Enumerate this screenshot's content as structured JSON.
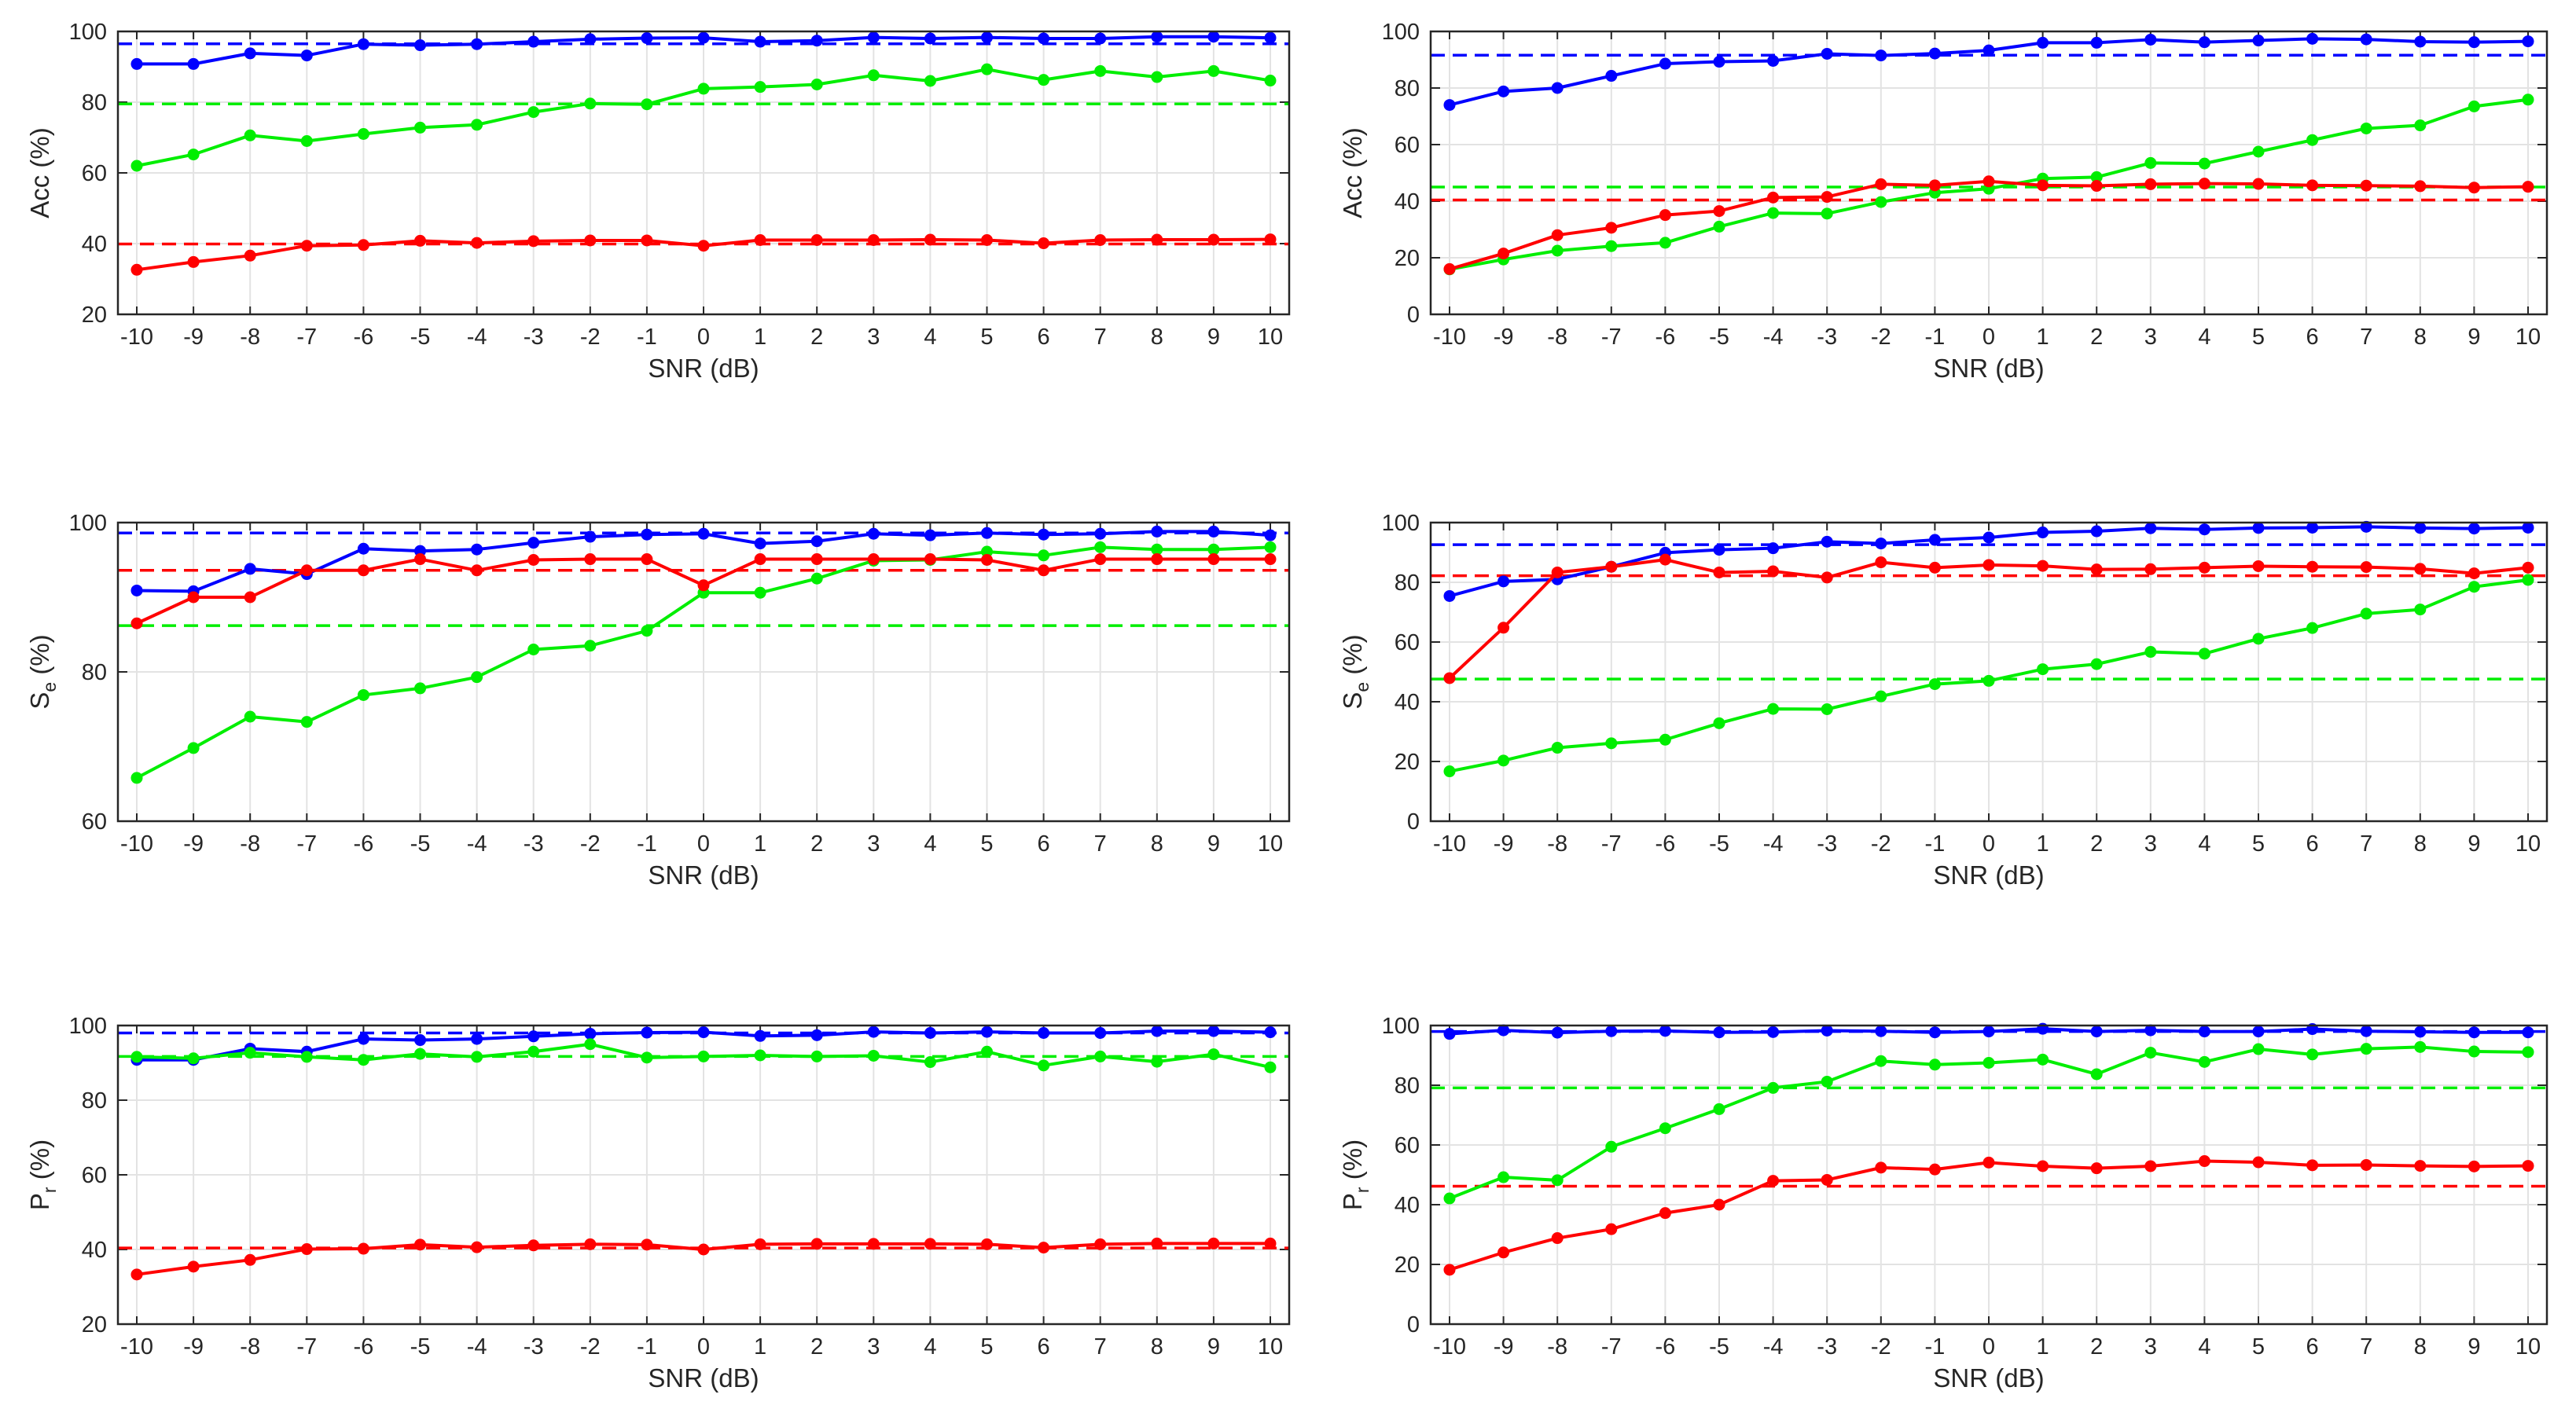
{
  "figure_type": "grid of 6 line charts (3 rows x 2 columns)",
  "colors": {
    "blue": "#0000ff",
    "green": "#00ee00",
    "red": "#ff0000",
    "grid": "#e3e3e3",
    "axis": "#262626"
  },
  "chart_data": [
    {
      "id": "row1-left",
      "type": "line",
      "xlabel": "SNR (dB)",
      "ylabel_main": "Acc",
      "ylabel_sub": "",
      "ylabel_unit": " (%)",
      "xticks": [
        "-10",
        "-9",
        "-8",
        "-7",
        "-6",
        "-5",
        "-4",
        "-3",
        "-2",
        "-1",
        "0",
        "1",
        "2",
        "3",
        "4",
        "5",
        "6",
        "7",
        "8",
        "9",
        "10"
      ],
      "ylim": [
        20,
        100
      ],
      "yticks": [
        "20",
        "40",
        "60",
        "80",
        "100"
      ],
      "series": [
        {
          "name": "blue",
          "color": "#0000ff",
          "baseline": 96.5,
          "values": [
            90.8,
            90.8,
            93.8,
            93.2,
            96.4,
            96.1,
            96.4,
            97.1,
            97.8,
            98.1,
            98.2,
            97.1,
            97.4,
            98.3,
            98.0,
            98.3,
            98.0,
            98.0,
            98.5,
            98.5,
            98.2
          ]
        },
        {
          "name": "green",
          "color": "#00ee00",
          "baseline": 79.5,
          "values": [
            62.0,
            65.2,
            70.6,
            69.0,
            71.0,
            72.8,
            73.6,
            77.2,
            79.6,
            79.4,
            83.8,
            84.3,
            85.0,
            87.6,
            86.0,
            89.3,
            86.3,
            88.8,
            87.1,
            88.8,
            86.1
          ]
        },
        {
          "name": "red",
          "color": "#ff0000",
          "baseline": 39.9,
          "values": [
            32.6,
            34.8,
            36.6,
            39.4,
            39.6,
            40.8,
            40.2,
            40.7,
            40.9,
            40.9,
            39.4,
            41.0,
            41.0,
            41.0,
            41.1,
            41.0,
            40.1,
            41.0,
            41.1,
            41.1,
            41.2
          ]
        }
      ]
    },
    {
      "id": "row1-right",
      "type": "line",
      "xlabel": "SNR (dB)",
      "ylabel_main": "Acc",
      "ylabel_sub": "",
      "ylabel_unit": " (%)",
      "xticks": [
        "-10",
        "-9",
        "-8",
        "-7",
        "-6",
        "-5",
        "-4",
        "-3",
        "-2",
        "-1",
        "0",
        "1",
        "2",
        "3",
        "4",
        "5",
        "6",
        "7",
        "8",
        "9",
        "10"
      ],
      "ylim": [
        0,
        100
      ],
      "yticks": [
        "0",
        "20",
        "40",
        "60",
        "80",
        "100"
      ],
      "series": [
        {
          "name": "blue",
          "color": "#0000ff",
          "baseline": 91.6,
          "values": [
            74.0,
            78.8,
            80.0,
            84.3,
            88.6,
            89.3,
            89.6,
            92.1,
            91.5,
            92.2,
            93.3,
            96.0,
            96.0,
            97.1,
            96.2,
            96.8,
            97.4,
            97.2,
            96.4,
            96.2,
            96.5
          ]
        },
        {
          "name": "green",
          "color": "#00ee00",
          "baseline": 45.0,
          "values": [
            15.9,
            19.4,
            22.5,
            24.1,
            25.3,
            31.0,
            35.8,
            35.6,
            39.7,
            43.0,
            44.4,
            48.0,
            48.5,
            53.5,
            53.3,
            57.5,
            61.6,
            65.7,
            66.8,
            73.5,
            75.9
          ]
        },
        {
          "name": "red",
          "color": "#ff0000",
          "baseline": 40.4,
          "values": [
            16.0,
            21.5,
            28.0,
            30.6,
            35.1,
            36.5,
            41.3,
            41.5,
            46.0,
            45.6,
            47.0,
            45.6,
            45.4,
            46.0,
            46.2,
            46.1,
            45.6,
            45.5,
            45.3,
            44.8,
            45.1
          ]
        }
      ]
    },
    {
      "id": "row2-left",
      "type": "line",
      "xlabel": "SNR (dB)",
      "ylabel_main": "S",
      "ylabel_sub": "e",
      "ylabel_unit": " (%)",
      "xticks": [
        "-10",
        "-9",
        "-8",
        "-7",
        "-6",
        "-5",
        "-4",
        "-3",
        "-2",
        "-1",
        "0",
        "1",
        "2",
        "3",
        "4",
        "5",
        "6",
        "7",
        "8",
        "9",
        "10"
      ],
      "ylim": [
        60,
        100
      ],
      "yticks": [
        "60",
        "80",
        "100"
      ],
      "series": [
        {
          "name": "blue",
          "color": "#0000ff",
          "baseline": 98.6,
          "values": [
            90.9,
            90.8,
            93.8,
            93.1,
            96.5,
            96.2,
            96.4,
            97.3,
            98.1,
            98.4,
            98.5,
            97.2,
            97.5,
            98.5,
            98.3,
            98.6,
            98.4,
            98.5,
            98.8,
            98.8,
            98.3
          ]
        },
        {
          "name": "green",
          "color": "#00ee00",
          "baseline": 86.2,
          "values": [
            65.8,
            69.8,
            74.0,
            73.3,
            76.9,
            77.8,
            79.3,
            83.0,
            83.5,
            85.5,
            90.6,
            90.6,
            92.5,
            94.9,
            95.0,
            96.1,
            95.6,
            96.7,
            96.4,
            96.4,
            96.7
          ]
        },
        {
          "name": "red",
          "color": "#ff0000",
          "baseline": 93.6,
          "values": [
            86.5,
            90.0,
            90.0,
            93.6,
            93.6,
            95.1,
            93.6,
            95.0,
            95.1,
            95.1,
            91.6,
            95.1,
            95.1,
            95.1,
            95.1,
            95.0,
            93.6,
            95.1,
            95.1,
            95.1,
            95.1
          ]
        }
      ]
    },
    {
      "id": "row2-right",
      "type": "line",
      "xlabel": "SNR (dB)",
      "ylabel_main": "S",
      "ylabel_sub": "e",
      "ylabel_unit": " (%)",
      "xticks": [
        "-10",
        "-9",
        "-8",
        "-7",
        "-6",
        "-5",
        "-4",
        "-3",
        "-2",
        "-1",
        "0",
        "1",
        "2",
        "3",
        "4",
        "5",
        "6",
        "7",
        "8",
        "9",
        "10"
      ],
      "ylim": [
        0,
        100
      ],
      "yticks": [
        "0",
        "20",
        "40",
        "60",
        "80",
        "100"
      ],
      "series": [
        {
          "name": "blue",
          "color": "#0000ff",
          "baseline": 92.6,
          "values": [
            75.4,
            80.3,
            81.0,
            85.2,
            89.9,
            90.9,
            91.4,
            93.6,
            93.0,
            94.2,
            95.0,
            96.7,
            97.1,
            98.1,
            97.7,
            98.2,
            98.3,
            98.6,
            98.2,
            98.0,
            98.3
          ]
        },
        {
          "name": "green",
          "color": "#00ee00",
          "baseline": 47.6,
          "values": [
            16.7,
            20.3,
            24.6,
            26.1,
            27.3,
            32.8,
            37.6,
            37.5,
            41.8,
            45.9,
            47.0,
            50.9,
            52.6,
            56.7,
            56.1,
            61.1,
            64.7,
            69.5,
            70.9,
            78.5,
            80.8
          ]
        },
        {
          "name": "red",
          "color": "#ff0000",
          "baseline": 82.2,
          "values": [
            47.9,
            64.8,
            83.3,
            85.2,
            87.6,
            83.3,
            83.7,
            81.6,
            86.7,
            84.9,
            85.8,
            85.5,
            84.3,
            84.4,
            84.9,
            85.4,
            85.2,
            85.1,
            84.5,
            83.0,
            84.9
          ]
        }
      ]
    },
    {
      "id": "row3-left",
      "type": "line",
      "xlabel": "SNR (dB)",
      "ylabel_main": "P",
      "ylabel_sub": "r",
      "ylabel_unit": " (%)",
      "xticks": [
        "-10",
        "-9",
        "-8",
        "-7",
        "-6",
        "-5",
        "-4",
        "-3",
        "-2",
        "-1",
        "0",
        "1",
        "2",
        "3",
        "4",
        "5",
        "6",
        "7",
        "8",
        "9",
        "10"
      ],
      "ylim": [
        20,
        100
      ],
      "yticks": [
        "20",
        "40",
        "60",
        "80",
        "100"
      ],
      "series": [
        {
          "name": "blue",
          "color": "#0000ff",
          "baseline": 98.0,
          "values": [
            90.8,
            90.8,
            93.8,
            93.0,
            96.4,
            96.1,
            96.4,
            97.1,
            97.8,
            98.1,
            98.2,
            97.2,
            97.4,
            98.3,
            98.0,
            98.3,
            98.0,
            98.0,
            98.5,
            98.5,
            98.2
          ]
        },
        {
          "name": "green",
          "color": "#00ee00",
          "baseline": 91.7,
          "values": [
            91.6,
            91.2,
            92.7,
            91.6,
            90.8,
            92.4,
            91.6,
            93.0,
            95.0,
            91.4,
            91.7,
            92.0,
            91.7,
            91.9,
            90.2,
            93.0,
            89.3,
            91.7,
            90.3,
            92.3,
            88.8
          ]
        },
        {
          "name": "red",
          "color": "#ff0000",
          "baseline": 40.4,
          "values": [
            33.3,
            35.4,
            37.2,
            40.1,
            40.2,
            41.3,
            40.6,
            41.1,
            41.4,
            41.3,
            40.0,
            41.4,
            41.5,
            41.5,
            41.5,
            41.4,
            40.5,
            41.4,
            41.6,
            41.6,
            41.6
          ]
        }
      ]
    },
    {
      "id": "row3-right",
      "type": "line",
      "xlabel": "SNR (dB)",
      "ylabel_main": "P",
      "ylabel_sub": "r",
      "ylabel_unit": " (%)",
      "xticks": [
        "-10",
        "-9",
        "-8",
        "-7",
        "-6",
        "-5",
        "-4",
        "-3",
        "-2",
        "-1",
        "0",
        "1",
        "2",
        "3",
        "4",
        "5",
        "6",
        "7",
        "8",
        "9",
        "10"
      ],
      "ylim": [
        0,
        100
      ],
      "yticks": [
        "0",
        "20",
        "40",
        "60",
        "80",
        "100"
      ],
      "series": [
        {
          "name": "blue",
          "color": "#0000ff",
          "baseline": 98.0,
          "values": [
            97.2,
            98.4,
            97.6,
            98.1,
            98.2,
            97.7,
            97.8,
            98.3,
            98.1,
            97.7,
            98.0,
            98.9,
            98.0,
            98.4,
            98.0,
            98.0,
            98.8,
            98.1,
            97.9,
            97.7,
            97.7
          ]
        },
        {
          "name": "green",
          "color": "#00ee00",
          "baseline": 79.1,
          "values": [
            42.1,
            49.2,
            48.2,
            59.4,
            65.6,
            72.0,
            79.1,
            81.2,
            88.1,
            86.9,
            87.5,
            88.6,
            83.7,
            90.9,
            87.8,
            92.1,
            90.3,
            92.2,
            92.8,
            91.3,
            91.1
          ]
        },
        {
          "name": "red",
          "color": "#ff0000",
          "baseline": 46.2,
          "values": [
            18.2,
            24.0,
            28.8,
            31.8,
            37.2,
            40.0,
            48.0,
            48.3,
            52.4,
            51.8,
            54.1,
            52.9,
            52.2,
            52.9,
            54.6,
            54.2,
            53.2,
            53.3,
            53.0,
            52.8,
            53.0
          ]
        }
      ]
    }
  ]
}
